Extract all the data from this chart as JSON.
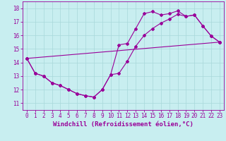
{
  "xlabel": "Windchill (Refroidissement éolien,°C)",
  "bg_color": "#c8eef0",
  "line_color": "#990099",
  "xlim": [
    -0.5,
    23.5
  ],
  "ylim": [
    10.5,
    18.5
  ],
  "xticks": [
    0,
    1,
    2,
    3,
    4,
    5,
    6,
    7,
    8,
    9,
    10,
    11,
    12,
    13,
    14,
    15,
    16,
    17,
    18,
    19,
    20,
    21,
    22,
    23
  ],
  "yticks": [
    11,
    12,
    13,
    14,
    15,
    16,
    17,
    18
  ],
  "series1_x": [
    0,
    1,
    2,
    3,
    4,
    5,
    6,
    7,
    8,
    9,
    10,
    11,
    12,
    13,
    14,
    15,
    16,
    17,
    18,
    19,
    20,
    21,
    22,
    23
  ],
  "series1_y": [
    14.3,
    13.2,
    13.0,
    12.5,
    12.3,
    12.0,
    11.7,
    11.55,
    11.45,
    12.0,
    13.1,
    15.3,
    15.4,
    16.5,
    17.6,
    17.75,
    17.5,
    17.6,
    17.8,
    17.4,
    17.5,
    16.7,
    15.95,
    15.5
  ],
  "series2_x": [
    0,
    1,
    2,
    3,
    4,
    5,
    6,
    7,
    8,
    9,
    10,
    11,
    12,
    13,
    14,
    15,
    16,
    17,
    18,
    19,
    20,
    21,
    22,
    23
  ],
  "series2_y": [
    14.3,
    13.2,
    13.0,
    12.5,
    12.3,
    12.0,
    11.7,
    11.55,
    11.45,
    12.0,
    13.1,
    13.2,
    14.1,
    15.2,
    16.0,
    16.5,
    16.9,
    17.2,
    17.55,
    17.4,
    17.5,
    16.7,
    15.95,
    15.5
  ],
  "series3_x": [
    0,
    23
  ],
  "series3_y": [
    14.3,
    15.5
  ],
  "grid_color": "#a8d8da",
  "xlabel_fontsize": 6.5,
  "tick_fontsize": 5.5,
  "marker": "D",
  "markersize": 2.0,
  "linewidth": 0.8
}
